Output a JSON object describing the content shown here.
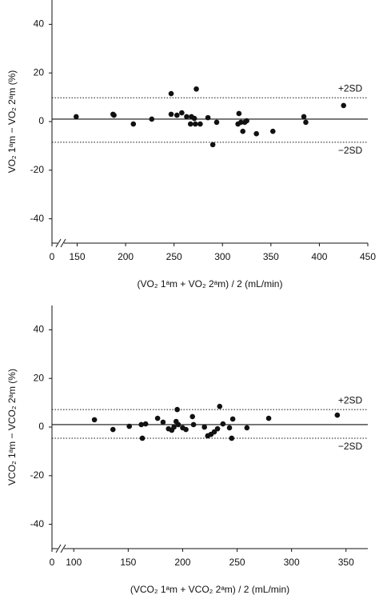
{
  "chart_data": [
    {
      "type": "scatter",
      "ylabel": "VO₂ 1ᵃm − VO₂ 2ᵃm  (%)",
      "xlabel": "(VO₂ 1ᵃm + VO₂ 2ᵃm) / 2 (mL/min)",
      "x_break_label": "0",
      "xlim": [
        124,
        450
      ],
      "xticks": [
        150,
        200,
        250,
        300,
        350,
        400,
        450
      ],
      "ylim": [
        -50,
        50
      ],
      "yticks": [
        -40,
        -20,
        0,
        20,
        40
      ],
      "reference_lines": [
        {
          "value": 1,
          "style": "solid"
        },
        {
          "value": 9.8,
          "style": "dotted",
          "label": "+2SD"
        },
        {
          "value": -8.5,
          "style": "dotted",
          "label": "−2SD"
        }
      ],
      "series": [
        {
          "color": "#111111",
          "x": [
            149,
            187,
            188,
            208,
            227,
            247,
            247,
            253,
            258,
            263,
            267,
            268,
            271,
            273,
            272,
            277,
            285,
            290,
            294,
            316,
            317,
            319,
            321,
            323,
            325,
            335,
            352,
            384,
            386,
            425
          ],
          "values": [
            2,
            3,
            2.6,
            -1,
            1,
            11.5,
            3,
            2.6,
            3.6,
            2,
            -1,
            2,
            1.3,
            13.4,
            -1,
            -1,
            1.6,
            -9.5,
            -0.3,
            -1,
            3.3,
            -0.3,
            -4,
            -0.3,
            0.3,
            -5,
            -4,
            2,
            -0.3,
            6.6
          ]
        }
      ]
    },
    {
      "type": "scatter",
      "ylabel": "VCO₂ 1ᵃm − VCO₂ 2ᵃm  (%)",
      "xlabel": "(VCO₂ 1ᵃm + VCO₂ 2ᵃm) / 2 (mL/min)",
      "x_break_label": "0",
      "xlim": [
        80,
        370
      ],
      "xticks": [
        100,
        150,
        200,
        250,
        300,
        350
      ],
      "ylim": [
        -50,
        50
      ],
      "yticks": [
        -40,
        -20,
        0,
        20,
        40
      ],
      "reference_lines": [
        {
          "value": 1,
          "style": "solid"
        },
        {
          "value": 7.2,
          "style": "dotted",
          "label": "+2SD"
        },
        {
          "value": -4.6,
          "style": "dotted",
          "label": "−2SD"
        }
      ],
      "series": [
        {
          "color": "#111111",
          "x": [
            119,
            136,
            151,
            162,
            163,
            166,
            177,
            182,
            187,
            190,
            192,
            194,
            195,
            196,
            200,
            203,
            209,
            210,
            220,
            223,
            226,
            229,
            232,
            234,
            237,
            243,
            245,
            246,
            259,
            279,
            342
          ],
          "values": [
            3,
            -1,
            0.3,
            1,
            -4.6,
            1.3,
            3.6,
            2,
            -0.7,
            -1.3,
            0,
            2.3,
            7.2,
            1,
            -0.3,
            -1,
            4.3,
            1,
            0,
            -3.6,
            -3,
            -2,
            -0.7,
            8.5,
            1.3,
            -0.3,
            -4.6,
            3.3,
            -0.3,
            3.6,
            4.9
          ]
        }
      ]
    }
  ]
}
